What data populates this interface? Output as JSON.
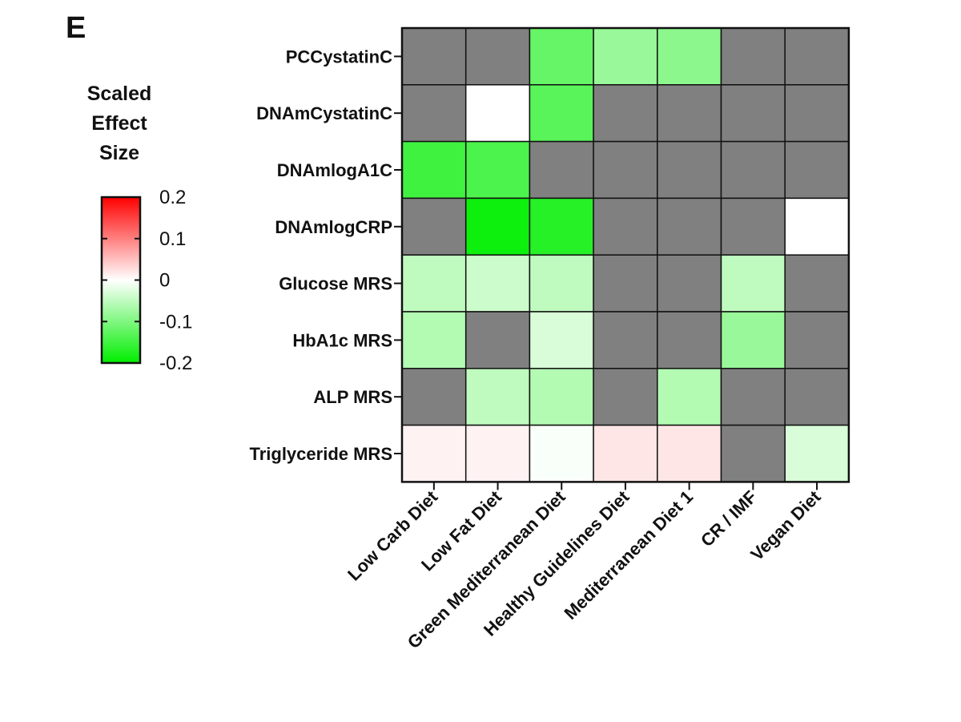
{
  "chart_data": {
    "type": "heatmap",
    "panel_label": "E",
    "rows": [
      "PCCystatinC",
      "DNAmCystatinC",
      "DNAmlogA1C",
      "DNAmlogCRP",
      "Glucose MRS",
      "HbA1c MRS",
      "ALP MRS",
      "Triglyceride MRS"
    ],
    "columns": [
      "Low Carb Diet",
      "Low Fat Diet",
      "Green Mediterranean Diet",
      "Healthy Guidelines Diet",
      "Mediterranean Diet 1",
      "CR / IMF",
      "Vegan Diet"
    ],
    "values": [
      [
        null,
        null,
        -0.12,
        -0.08,
        -0.09,
        null,
        null
      ],
      [
        null,
        0.0,
        -0.13,
        null,
        null,
        null,
        null
      ],
      [
        -0.15,
        -0.14,
        null,
        null,
        null,
        null,
        null
      ],
      [
        null,
        -0.19,
        -0.17,
        null,
        null,
        null,
        0.0
      ],
      [
        -0.05,
        -0.04,
        -0.05,
        null,
        null,
        -0.05,
        null
      ],
      [
        -0.06,
        null,
        -0.03,
        null,
        null,
        -0.08,
        null
      ],
      [
        null,
        -0.05,
        -0.06,
        null,
        -0.06,
        null,
        null
      ],
      [
        0.01,
        0.01,
        -0.005,
        0.02,
        0.02,
        null,
        -0.03
      ]
    ],
    "missing_color": "#808080",
    "color_scale": {
      "min": -0.2,
      "max": 0.2,
      "low_color": "#00ee00",
      "mid_color": "#ffffff",
      "high_color": "#ff0000"
    },
    "legend": {
      "title_lines": [
        "Scaled",
        "Effect",
        "Size"
      ],
      "ticks": [
        "0.2",
        "0.1",
        "0",
        "-0.1",
        "-0.2"
      ],
      "tick_values": [
        0.2,
        0.1,
        0,
        -0.1,
        -0.2
      ]
    }
  }
}
